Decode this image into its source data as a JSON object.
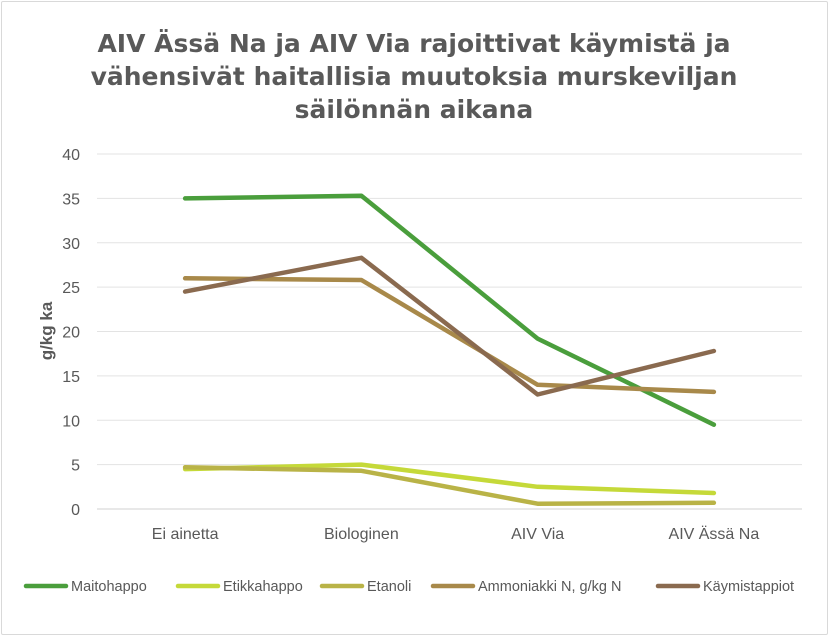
{
  "chart_data": {
    "type": "line",
    "title": [
      "AIV Ässä Na ja AIV Via rajoittivat käymistä ja",
      "vähensivät haitallisia muutoksia murskeviljan",
      "säilönnän aikana"
    ],
    "ylabel": "g/kg ka",
    "xlabel": "",
    "ylim": [
      0,
      40
    ],
    "yticks": [
      0,
      5,
      10,
      15,
      20,
      25,
      30,
      35,
      40
    ],
    "grid": true,
    "legend_position": "bottom",
    "categories": [
      "Ei ainetta",
      "Biologinen",
      "AIV Via",
      "AIV Ässä Na"
    ],
    "series": [
      {
        "name": "Maitohappo",
        "color": "#4a9e3c",
        "values": [
          35.0,
          35.3,
          19.2,
          9.5
        ]
      },
      {
        "name": "Etikkahappo",
        "color": "#c5d939",
        "values": [
          4.5,
          5.0,
          2.5,
          1.8
        ]
      },
      {
        "name": "Etanoli",
        "color": "#b9b347",
        "values": [
          4.7,
          4.3,
          0.6,
          0.7
        ]
      },
      {
        "name": "Ammoniakki N, g/kg N",
        "color": "#a8894a",
        "values": [
          26.0,
          25.8,
          14.0,
          13.2
        ]
      },
      {
        "name": "Käymistappiot",
        "color": "#8a6a4f",
        "values": [
          24.5,
          28.3,
          12.9,
          17.8
        ]
      }
    ]
  }
}
